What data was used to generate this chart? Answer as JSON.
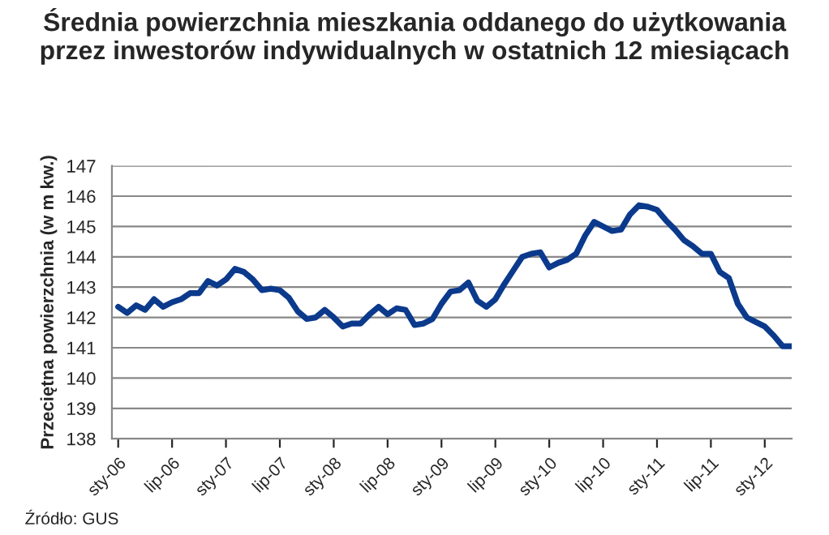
{
  "chart_data": {
    "type": "line",
    "title": "Średnia powierzchnia mieszkania oddanego do użytkowania\nprzez inwestorów indywidualnych w ostatnich 12 miesiącach",
    "ylabel": "Przeciętna powierzchnia (w m kw.)",
    "annotations": [
      "Źródło: GUS"
    ],
    "categories": [
      "sty-06",
      null,
      null,
      null,
      null,
      null,
      "lip-06",
      null,
      null,
      null,
      null,
      null,
      "sty-07",
      null,
      null,
      null,
      null,
      null,
      "lip-07",
      null,
      null,
      null,
      null,
      null,
      "sty-08",
      null,
      null,
      null,
      null,
      null,
      "lip-08",
      null,
      null,
      null,
      null,
      null,
      "sty-09",
      null,
      null,
      null,
      null,
      null,
      "lip-09",
      null,
      null,
      null,
      null,
      null,
      "sty-10",
      null,
      null,
      null,
      null,
      null,
      "lip-10",
      null,
      null,
      null,
      null,
      null,
      "sty-11",
      null,
      null,
      null,
      null,
      null,
      "lip-11",
      null,
      null,
      null,
      null,
      null,
      "sty-12",
      null,
      null,
      null
    ],
    "series": [
      {
        "color": "#0b3a8c",
        "values": [
          142.35,
          142.15,
          142.4,
          142.25,
          142.6,
          142.35,
          142.5,
          142.6,
          142.8,
          142.8,
          143.2,
          143.05,
          143.25,
          143.6,
          143.5,
          143.25,
          142.9,
          142.95,
          142.9,
          142.65,
          142.2,
          141.95,
          142.0,
          142.25,
          142.0,
          141.7,
          141.8,
          141.8,
          142.1,
          142.35,
          142.1,
          142.3,
          142.25,
          141.75,
          141.8,
          141.95,
          142.45,
          142.85,
          142.9,
          143.15,
          142.55,
          142.35,
          142.6,
          143.1,
          143.55,
          144.0,
          144.1,
          144.15,
          143.65,
          143.8,
          143.9,
          144.1,
          144.7,
          145.15,
          145.0,
          144.85,
          144.9,
          145.4,
          145.7,
          145.65,
          145.55,
          145.2,
          144.9,
          144.55,
          144.35,
          144.1,
          144.1,
          143.5,
          143.3,
          142.45,
          142.0,
          141.85,
          141.7,
          141.4,
          141.05,
          141.05
        ]
      }
    ],
    "ylim": [
      138,
      147
    ],
    "yticks": [
      138,
      139,
      140,
      141,
      142,
      143,
      144,
      145,
      146,
      147
    ],
    "grid": "y",
    "marker": "none",
    "line_style": "solid"
  }
}
